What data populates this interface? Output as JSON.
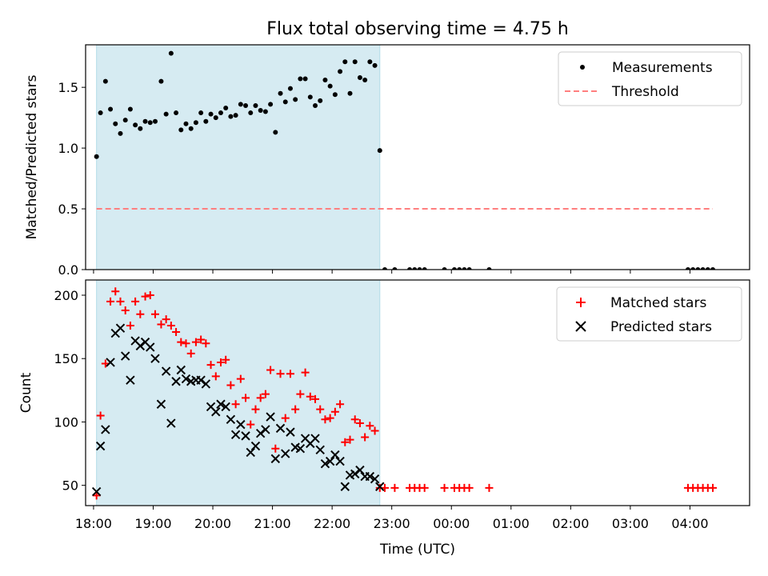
{
  "figure": {
    "title": "Flux total observing time = 4.75 h"
  },
  "colors": {
    "shade": "#add8e6",
    "threshold": "#ff7f7f",
    "matched": "#ff0000",
    "predicted": "#000000",
    "measurements": "#000000"
  },
  "chart_data": [
    {
      "type": "scatter",
      "ylabel": "Matched/Predicted stars",
      "xlabel": "",
      "ylim": [
        0,
        1.85
      ],
      "xlim": [
        "17:52",
        "05:00"
      ],
      "yticks": [
        0.0,
        0.5,
        1.0,
        1.5
      ],
      "yticklabels": [
        "0.0",
        "0.5",
        "1.0",
        "1.5"
      ],
      "legend_position": "top-right",
      "shaded_interval": {
        "start": "18:03",
        "end": "22:48"
      },
      "series": [
        {
          "name": "Measurements",
          "marker": "dot",
          "points": [
            [
              "18:03",
              0.93
            ],
            [
              "18:07",
              1.29
            ],
            [
              "18:12",
              1.55
            ],
            [
              "18:17",
              1.32
            ],
            [
              "18:22",
              1.2
            ],
            [
              "18:27",
              1.12
            ],
            [
              "18:32",
              1.23
            ],
            [
              "18:37",
              1.32
            ],
            [
              "18:42",
              1.19
            ],
            [
              "18:47",
              1.16
            ],
            [
              "18:52",
              1.22
            ],
            [
              "18:57",
              1.21
            ],
            [
              "19:02",
              1.22
            ],
            [
              "19:08",
              1.55
            ],
            [
              "19:13",
              1.28
            ],
            [
              "19:18",
              1.78
            ],
            [
              "19:23",
              1.29
            ],
            [
              "19:28",
              1.15
            ],
            [
              "19:33",
              1.2
            ],
            [
              "19:38",
              1.16
            ],
            [
              "19:43",
              1.21
            ],
            [
              "19:48",
              1.29
            ],
            [
              "19:53",
              1.22
            ],
            [
              "19:58",
              1.28
            ],
            [
              "20:03",
              1.25
            ],
            [
              "20:08",
              1.29
            ],
            [
              "20:13",
              1.33
            ],
            [
              "20:18",
              1.26
            ],
            [
              "20:23",
              1.27
            ],
            [
              "20:28",
              1.36
            ],
            [
              "20:33",
              1.35
            ],
            [
              "20:38",
              1.29
            ],
            [
              "20:43",
              1.35
            ],
            [
              "20:48",
              1.31
            ],
            [
              "20:53",
              1.3
            ],
            [
              "20:58",
              1.36
            ],
            [
              "21:03",
              1.13
            ],
            [
              "21:08",
              1.45
            ],
            [
              "21:13",
              1.38
            ],
            [
              "21:18",
              1.49
            ],
            [
              "21:23",
              1.4
            ],
            [
              "21:28",
              1.57
            ],
            [
              "21:33",
              1.57
            ],
            [
              "21:38",
              1.42
            ],
            [
              "21:43",
              1.35
            ],
            [
              "21:48",
              1.39
            ],
            [
              "21:53",
              1.56
            ],
            [
              "21:58",
              1.51
            ],
            [
              "22:03",
              1.44
            ],
            [
              "22:08",
              1.63
            ],
            [
              "22:13",
              1.71
            ],
            [
              "22:18",
              1.45
            ],
            [
              "22:23",
              1.71
            ],
            [
              "22:28",
              1.58
            ],
            [
              "22:33",
              1.56
            ],
            [
              "22:38",
              1.71
            ],
            [
              "22:43",
              1.68
            ],
            [
              "22:48",
              0.98
            ],
            [
              "22:53",
              0.0
            ],
            [
              "23:03",
              0.0
            ],
            [
              "23:18",
              0.0
            ],
            [
              "23:23",
              0.0
            ],
            [
              "23:28",
              0.0
            ],
            [
              "23:33",
              0.0
            ],
            [
              "23:53",
              0.0
            ],
            [
              "00:03",
              0.0
            ],
            [
              "00:08",
              0.0
            ],
            [
              "00:13",
              0.0
            ],
            [
              "00:18",
              0.0
            ],
            [
              "00:38",
              0.0
            ],
            [
              "03:58",
              0.0
            ],
            [
              "04:03",
              0.0
            ],
            [
              "04:08",
              0.0
            ],
            [
              "04:13",
              0.0
            ],
            [
              "04:18",
              0.0
            ],
            [
              "04:23",
              0.0
            ]
          ]
        },
        {
          "name": "Threshold",
          "type": "line",
          "style": "dashed",
          "points": [
            [
              "18:03",
              0.5
            ],
            [
              "04:23",
              0.5
            ]
          ]
        }
      ]
    },
    {
      "type": "scatter",
      "ylabel": "Count",
      "xlabel": "Time (UTC)",
      "ylim": [
        34,
        212
      ],
      "xlim": [
        "17:52",
        "05:00"
      ],
      "yticks": [
        50,
        100,
        150,
        200
      ],
      "yticklabels": [
        "50",
        "100",
        "150",
        "200"
      ],
      "xticks": [
        "18:00",
        "19:00",
        "20:00",
        "21:00",
        "22:00",
        "23:00",
        "00:00",
        "01:00",
        "02:00",
        "03:00",
        "04:00"
      ],
      "xticklabels": [
        "18:00",
        "19:00",
        "20:00",
        "21:00",
        "22:00",
        "23:00",
        "00:00",
        "01:00",
        "02:00",
        "03:00",
        "04:00"
      ],
      "legend_position": "top-right",
      "shaded_interval": {
        "start": "18:03",
        "end": "22:48"
      },
      "series": [
        {
          "name": "Matched stars",
          "marker": "plus",
          "points": [
            [
              "18:03",
              42
            ],
            [
              "18:07",
              105
            ],
            [
              "18:12",
              146
            ],
            [
              "18:17",
              195
            ],
            [
              "18:22",
              203
            ],
            [
              "18:27",
              195
            ],
            [
              "18:32",
              188
            ],
            [
              "18:37",
              176
            ],
            [
              "18:42",
              195
            ],
            [
              "18:47",
              185
            ],
            [
              "18:52",
              199
            ],
            [
              "18:57",
              200
            ],
            [
              "19:02",
              185
            ],
            [
              "19:08",
              177
            ],
            [
              "19:13",
              181
            ],
            [
              "19:18",
              176
            ],
            [
              "19:23",
              171
            ],
            [
              "19:28",
              163
            ],
            [
              "19:33",
              162
            ],
            [
              "19:38",
              154
            ],
            [
              "19:43",
              163
            ],
            [
              "19:48",
              165
            ],
            [
              "19:53",
              162
            ],
            [
              "19:58",
              145
            ],
            [
              "20:03",
              136
            ],
            [
              "20:08",
              147
            ],
            [
              "20:13",
              149
            ],
            [
              "20:18",
              129
            ],
            [
              "20:23",
              114
            ],
            [
              "20:28",
              134
            ],
            [
              "20:33",
              119
            ],
            [
              "20:38",
              98
            ],
            [
              "20:43",
              110
            ],
            [
              "20:48",
              119
            ],
            [
              "20:53",
              122
            ],
            [
              "20:58",
              141
            ],
            [
              "21:03",
              79
            ],
            [
              "21:08",
              138
            ],
            [
              "21:13",
              103
            ],
            [
              "21:18",
              138
            ],
            [
              "21:23",
              110
            ],
            [
              "21:28",
              122
            ],
            [
              "21:33",
              139
            ],
            [
              "21:38",
              120
            ],
            [
              "21:43",
              118
            ],
            [
              "21:48",
              110
            ],
            [
              "21:53",
              102
            ],
            [
              "21:58",
              103
            ],
            [
              "22:03",
              108
            ],
            [
              "22:08",
              114
            ],
            [
              "22:13",
              84
            ],
            [
              "22:18",
              86
            ],
            [
              "22:23",
              102
            ],
            [
              "22:28",
              99
            ],
            [
              "22:33",
              88
            ],
            [
              "22:38",
              97
            ],
            [
              "22:43",
              93
            ],
            [
              "22:48",
              48
            ],
            [
              "22:53",
              48
            ],
            [
              "23:03",
              48
            ],
            [
              "23:18",
              48
            ],
            [
              "23:23",
              48
            ],
            [
              "23:28",
              48
            ],
            [
              "23:33",
              48
            ],
            [
              "23:53",
              48
            ],
            [
              "00:03",
              48
            ],
            [
              "00:08",
              48
            ],
            [
              "00:13",
              48
            ],
            [
              "00:18",
              48
            ],
            [
              "00:38",
              48
            ],
            [
              "03:58",
              48
            ],
            [
              "04:03",
              48
            ],
            [
              "04:08",
              48
            ],
            [
              "04:13",
              48
            ],
            [
              "04:18",
              48
            ],
            [
              "04:23",
              48
            ]
          ]
        },
        {
          "name": "Predicted stars",
          "marker": "x",
          "points": [
            [
              "18:03",
              45
            ],
            [
              "18:07",
              81
            ],
            [
              "18:12",
              94
            ],
            [
              "18:17",
              147
            ],
            [
              "18:22",
              170
            ],
            [
              "18:27",
              174
            ],
            [
              "18:32",
              152
            ],
            [
              "18:37",
              133
            ],
            [
              "18:42",
              164
            ],
            [
              "18:47",
              160
            ],
            [
              "18:52",
              163
            ],
            [
              "18:57",
              159
            ],
            [
              "19:02",
              150
            ],
            [
              "19:08",
              114
            ],
            [
              "19:13",
              140
            ],
            [
              "19:18",
              99
            ],
            [
              "19:23",
              132
            ],
            [
              "19:28",
              141
            ],
            [
              "19:33",
              134
            ],
            [
              "19:38",
              132
            ],
            [
              "19:43",
              133
            ],
            [
              "19:48",
              133
            ],
            [
              "19:53",
              130
            ],
            [
              "19:58",
              112
            ],
            [
              "20:03",
              108
            ],
            [
              "20:08",
              114
            ],
            [
              "20:13",
              112
            ],
            [
              "20:18",
              102
            ],
            [
              "20:23",
              90
            ],
            [
              "20:28",
              98
            ],
            [
              "20:33",
              89
            ],
            [
              "20:38",
              76
            ],
            [
              "20:43",
              81
            ],
            [
              "20:48",
              91
            ],
            [
              "20:53",
              94
            ],
            [
              "20:58",
              104
            ],
            [
              "21:03",
              71
            ],
            [
              "21:08",
              95
            ],
            [
              "21:13",
              75
            ],
            [
              "21:18",
              92
            ],
            [
              "21:23",
              80
            ],
            [
              "21:28",
              79
            ],
            [
              "21:33",
              87
            ],
            [
              "21:38",
              83
            ],
            [
              "21:43",
              87
            ],
            [
              "21:48",
              78
            ],
            [
              "21:53",
              67
            ],
            [
              "21:58",
              69
            ],
            [
              "22:03",
              74
            ],
            [
              "22:08",
              69
            ],
            [
              "22:13",
              49
            ],
            [
              "22:18",
              58
            ],
            [
              "22:23",
              59
            ],
            [
              "22:28",
              62
            ],
            [
              "22:33",
              57
            ],
            [
              "22:38",
              57
            ],
            [
              "22:43",
              55
            ],
            [
              "22:48",
              49
            ]
          ]
        }
      ]
    }
  ]
}
